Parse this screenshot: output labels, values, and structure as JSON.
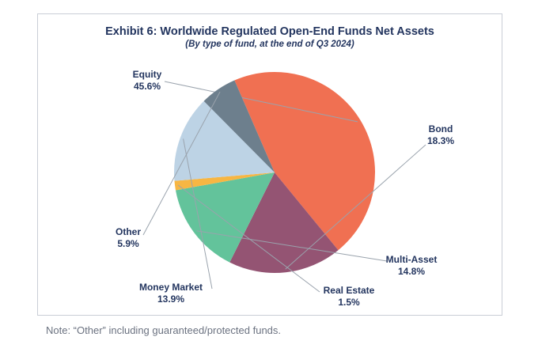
{
  "chart_data": {
    "type": "pie",
    "title": "Exhibit 6: Worldwide Regulated Open-End Funds Net Assets",
    "subtitle": "(By type of fund, at the end of Q3 2024)",
    "slices": [
      {
        "name": "Equity",
        "value": 45.6,
        "label": "45.6%",
        "color": "#f07052"
      },
      {
        "name": "Bond",
        "value": 18.3,
        "label": "18.3%",
        "color": "#945473"
      },
      {
        "name": "Multi-Asset",
        "value": 14.8,
        "label": "14.8%",
        "color": "#63c39b"
      },
      {
        "name": "Real Estate",
        "value": 1.5,
        "label": "1.5%",
        "color": "#f7b643"
      },
      {
        "name": "Money Market",
        "value": 13.9,
        "label": "13.9%",
        "color": "#bdd3e5"
      },
      {
        "name": "Other",
        "value": 5.9,
        "label": "5.9%",
        "color": "#6d7f8d"
      }
    ],
    "start_angle_deg": -23.5,
    "direction": "clockwise",
    "text_color": "#23355f",
    "leader_color": "#9aa3ad"
  },
  "note": "Note: “Other” including guaranteed/protected funds."
}
